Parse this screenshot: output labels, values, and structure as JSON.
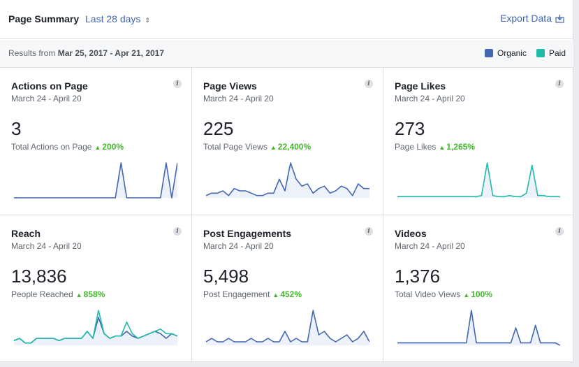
{
  "header": {
    "title": "Page Summary",
    "range_label": "Last 28 days",
    "range_caret": "↕",
    "export_label": "Export Data"
  },
  "subheader": {
    "results_prefix": "Results from",
    "results_range": "Mar 25, 2017 - Apr 21, 2017",
    "legend": [
      {
        "label": "Organic",
        "color": "#4267b2"
      },
      {
        "label": "Paid",
        "color": "#1fbba6"
      }
    ]
  },
  "colors": {
    "organic": "#4267b2",
    "paid": "#1fbba6",
    "positive": "#42b72a",
    "fill": "#e8edf7"
  },
  "cards": [
    {
      "title": "Actions on Page",
      "date": "March 24 - April 20",
      "value": "3",
      "sub": "Total Actions on Page",
      "delta": "200%",
      "info": "i"
    },
    {
      "title": "Page Views",
      "date": "March 24 - April 20",
      "value": "225",
      "sub": "Total Page Views",
      "delta": "22,400%",
      "info": "i"
    },
    {
      "title": "Page Likes",
      "date": "March 24 - April 20",
      "value": "273",
      "sub": "Page Likes",
      "delta": "1,265%",
      "info": "i"
    },
    {
      "title": "Reach",
      "date": "March 24 - April 20",
      "value": "13,836",
      "sub": "People Reached",
      "delta": "858%",
      "info": "i"
    },
    {
      "title": "Post Engagements",
      "date": "March 24 - April 20",
      "value": "5,498",
      "sub": "Post Engagement",
      "delta": "452%",
      "info": "i"
    },
    {
      "title": "Videos",
      "date": "March 24 - April 20",
      "value": "1,376",
      "sub": "Total Video Views",
      "delta": "100%",
      "info": "i"
    }
  ],
  "chart_data": [
    {
      "type": "line",
      "name": "Actions on Page",
      "series": [
        {
          "name": "Organic",
          "values": [
            0,
            0,
            0,
            0,
            0,
            0,
            0,
            0,
            0,
            0,
            0,
            0,
            0,
            0,
            0,
            0,
            0,
            0,
            0,
            1,
            0,
            0,
            0,
            0,
            0,
            0,
            0,
            1,
            0,
            1
          ]
        }
      ]
    },
    {
      "type": "line",
      "name": "Page Views",
      "series": [
        {
          "name": "Organic",
          "values": [
            1,
            2,
            2,
            3,
            1,
            4,
            3,
            3,
            2,
            1,
            1,
            2,
            2,
            8,
            3,
            15,
            8,
            5,
            6,
            2,
            4,
            5,
            2,
            3,
            5,
            4,
            1,
            6,
            4,
            4
          ]
        }
      ]
    },
    {
      "type": "line",
      "name": "Page Likes",
      "series": [
        {
          "name": "Paid",
          "values": [
            1,
            1,
            1,
            1,
            1,
            1,
            1,
            1,
            1,
            1,
            1,
            1,
            1,
            1,
            1,
            2,
            30,
            2,
            1,
            1,
            2,
            1,
            1,
            4,
            28,
            2,
            2,
            1,
            1,
            1
          ]
        }
      ]
    },
    {
      "type": "line",
      "name": "Reach",
      "series": [
        {
          "name": "Organic",
          "values": [
            2,
            3,
            1,
            1,
            3,
            3,
            3,
            3,
            2,
            3,
            3,
            3,
            3,
            6,
            3,
            12,
            5,
            3,
            4,
            4,
            6,
            4,
            3,
            4,
            5,
            6,
            5,
            3,
            5,
            4
          ]
        },
        {
          "name": "Paid",
          "values": [
            2,
            3,
            1,
            1,
            3,
            3,
            3,
            3,
            2,
            3,
            3,
            3,
            3,
            6,
            3,
            15,
            5,
            3,
            4,
            4,
            10,
            5,
            3,
            4,
            5,
            6,
            7,
            5,
            5,
            4
          ]
        }
      ]
    },
    {
      "type": "line",
      "name": "Post Engagements",
      "series": [
        {
          "name": "Organic",
          "values": [
            1,
            2,
            1,
            1,
            2,
            1,
            1,
            1,
            2,
            1,
            1,
            2,
            1,
            1,
            4,
            1,
            2,
            1,
            1,
            10,
            3,
            4,
            2,
            1,
            2,
            3,
            1,
            2,
            4,
            1
          ]
        }
      ]
    },
    {
      "type": "line",
      "name": "Videos",
      "series": [
        {
          "name": "Organic",
          "values": [
            1,
            1,
            1,
            1,
            1,
            1,
            1,
            1,
            1,
            1,
            1,
            1,
            1,
            1,
            1,
            14,
            1,
            1,
            1,
            1,
            1,
            1,
            1,
            1,
            7,
            1,
            1,
            1,
            8,
            1,
            1,
            1,
            1,
            0
          ]
        }
      ]
    }
  ]
}
